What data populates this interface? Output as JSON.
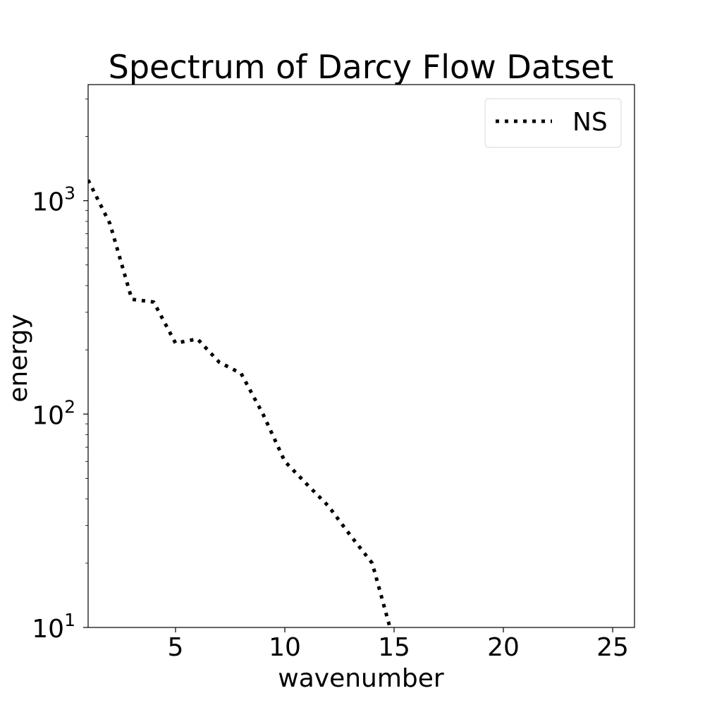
{
  "chart_data": {
    "type": "line",
    "title": "Spectrum of Darcy Flow Datset",
    "xlabel": "wavenumber",
    "ylabel": "energy",
    "xlim": [
      1,
      26
    ],
    "ylim": [
      10,
      3500
    ],
    "yscale": "log",
    "grid": false,
    "legend_position": "top-right",
    "x_ticks": [
      5,
      10,
      15,
      20,
      25
    ],
    "y_ticks": [
      {
        "value": 10,
        "base": "10",
        "exp": "1"
      },
      {
        "value": 100,
        "base": "10",
        "exp": "2"
      },
      {
        "value": 1000,
        "base": "10",
        "exp": "3"
      }
    ],
    "series": [
      {
        "name": "NS",
        "color": "#000000",
        "line_style": "dotted",
        "x": [
          1,
          2,
          3,
          4,
          5,
          6,
          7,
          8,
          9,
          10,
          11,
          12,
          13,
          14,
          15
        ],
        "y": [
          1250,
          780,
          345,
          335,
          215,
          225,
          175,
          155,
          100,
          60,
          47,
          37,
          27,
          20,
          8.5
        ]
      }
    ]
  }
}
